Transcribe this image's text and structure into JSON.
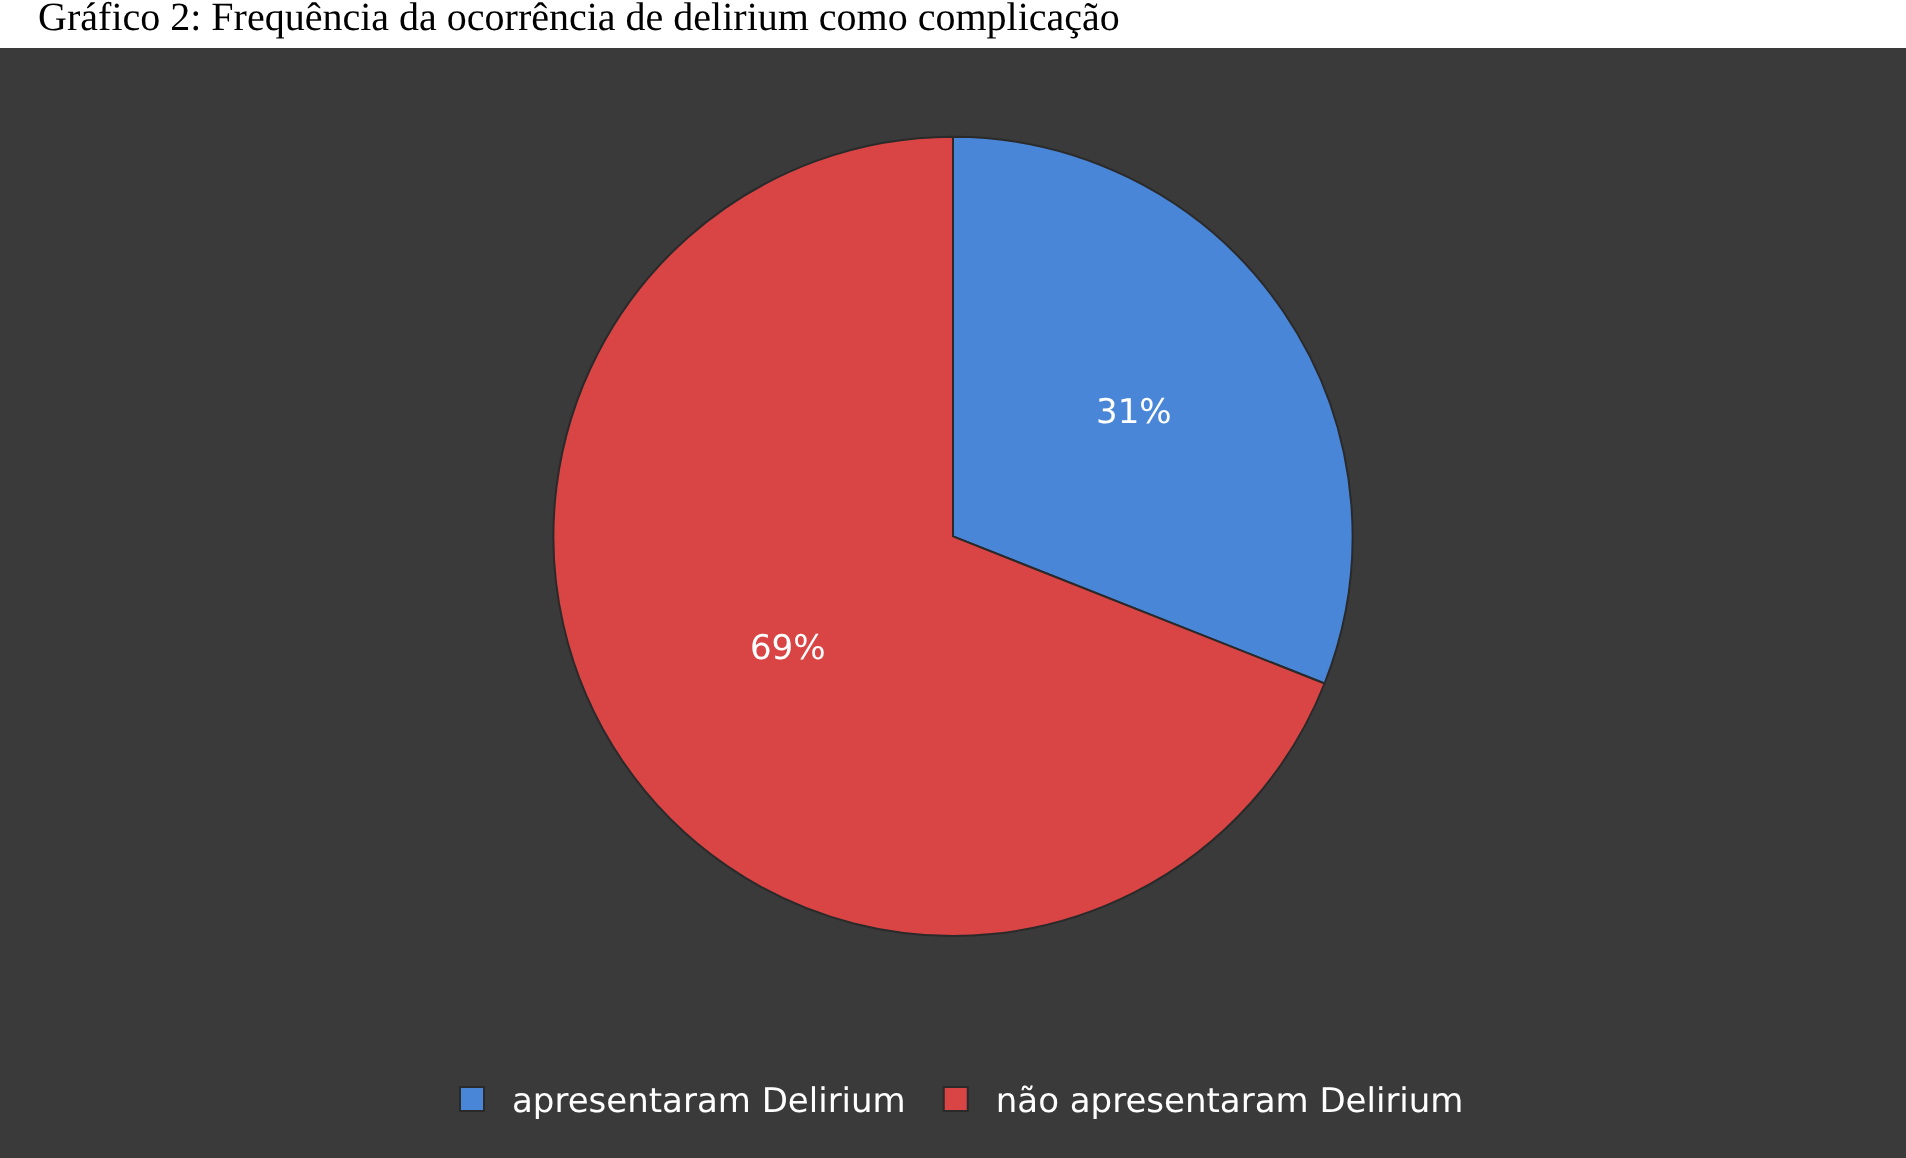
{
  "chart_data": {
    "type": "pie",
    "title": "Gráfico 2: Frequência da ocorrência de delirium como complicação",
    "categories": [
      "apresentaram Delirium",
      "não apresentaram Delirium"
    ],
    "values": [
      31,
      69
    ],
    "colors": [
      "#4a86d8",
      "#d94545"
    ],
    "value_labels": [
      "31%",
      "69%"
    ],
    "legend": "bottom"
  }
}
